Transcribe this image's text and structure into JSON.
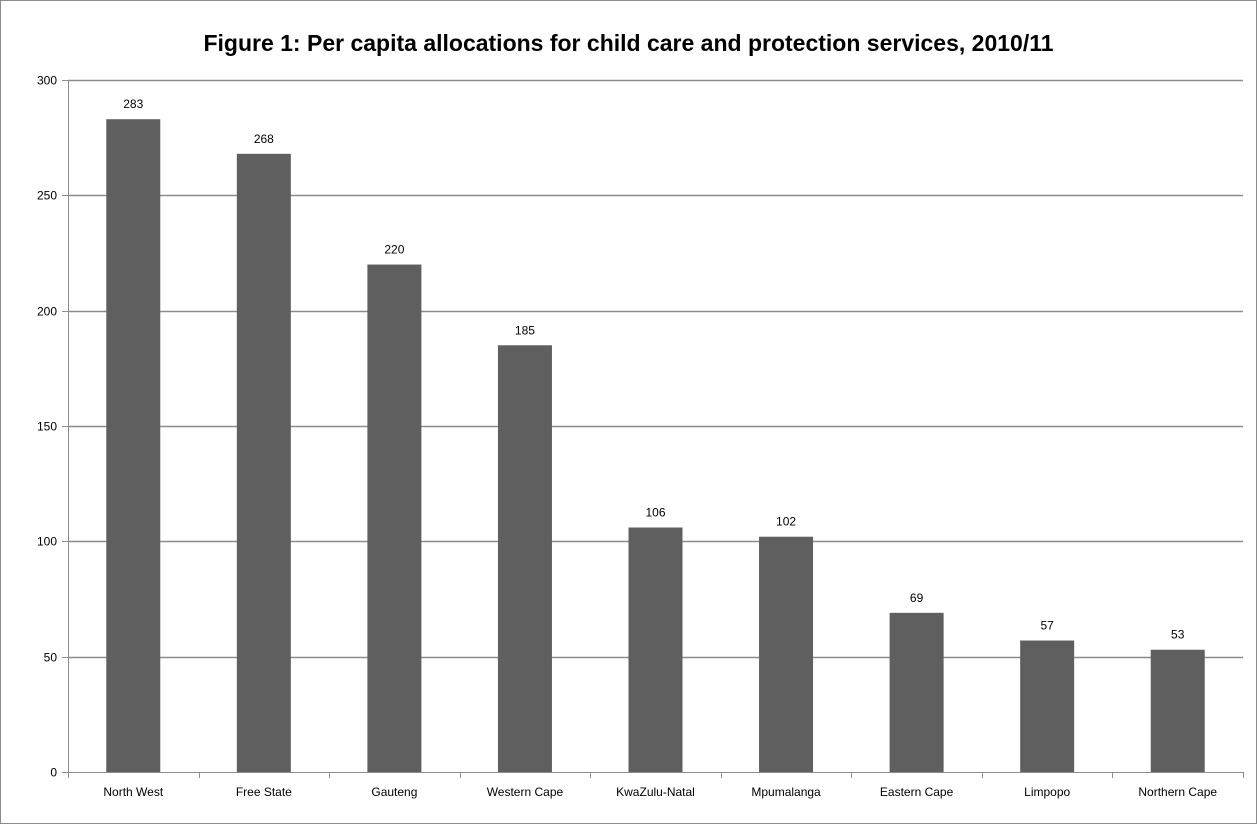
{
  "chart_data": {
    "type": "bar",
    "title": "Figure 1: Per capita allocations for child care and protection services, 2010/11",
    "xlabel": "",
    "ylabel": "",
    "categories": [
      "North West",
      "Free State",
      "Gauteng",
      "Western Cape",
      "KwaZulu-Natal",
      "Mpumalanga",
      "Eastern Cape",
      "Limpopo",
      "Northern Cape"
    ],
    "values": [
      283,
      268,
      220,
      185,
      106,
      102,
      69,
      57,
      53
    ],
    "ylim": [
      0,
      300
    ],
    "yticks": [
      0,
      50,
      100,
      150,
      200,
      250,
      300
    ],
    "grid": true,
    "legend": "none",
    "bar_color": "#5f5f5f",
    "grid_color": "#8c8c8c"
  }
}
